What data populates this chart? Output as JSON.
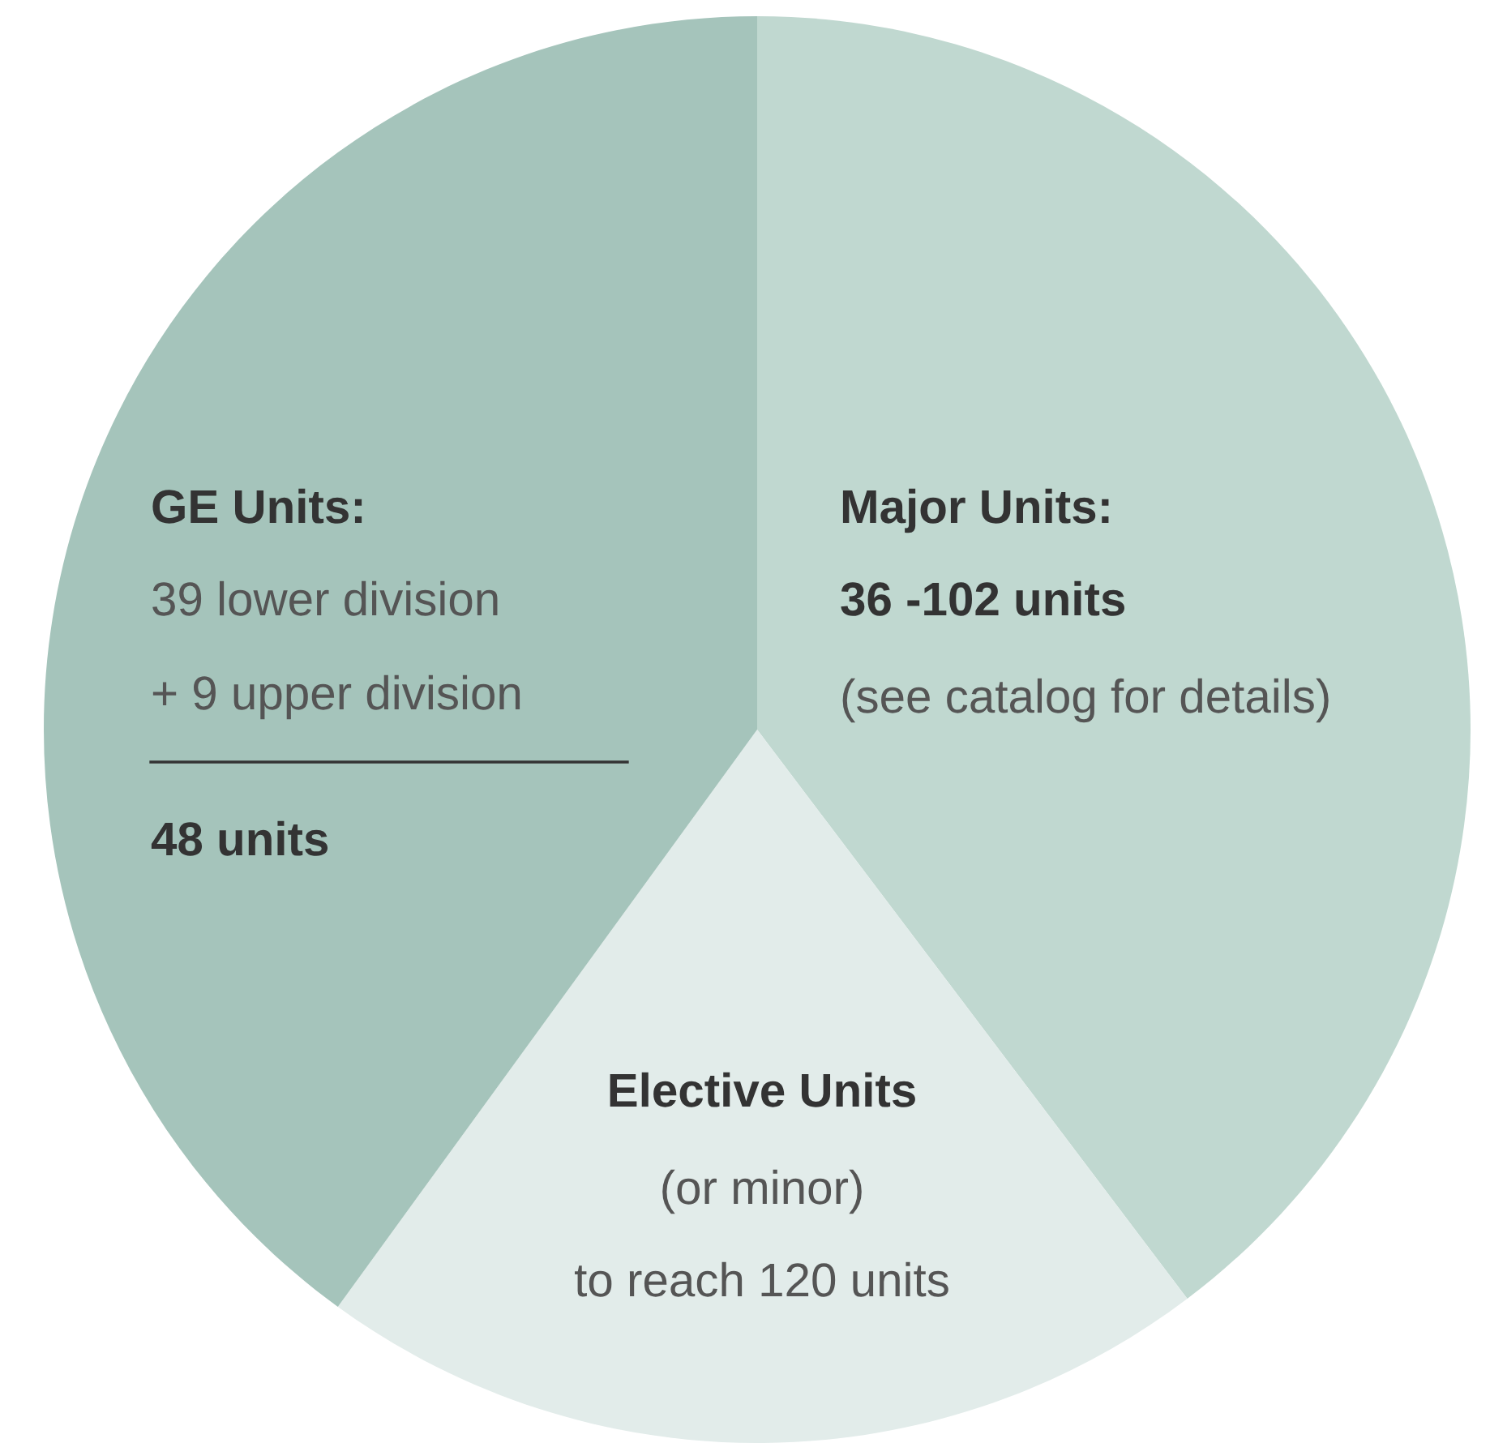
{
  "chart_data": {
    "type": "pie",
    "categories": [
      "Major Units:\n36 -102 units\n(see catalog for details)",
      "Elective Units\n(or minor)\nto reach 120 units",
      "GE Units:\n39 lower division\n+ 9 upper division\n48 units"
    ],
    "values": [
      39.7,
      20.3,
      40.0
    ],
    "colors": [
      "#c0d8d0",
      "#e2ecea",
      "#a5c4bb"
    ]
  }
}
